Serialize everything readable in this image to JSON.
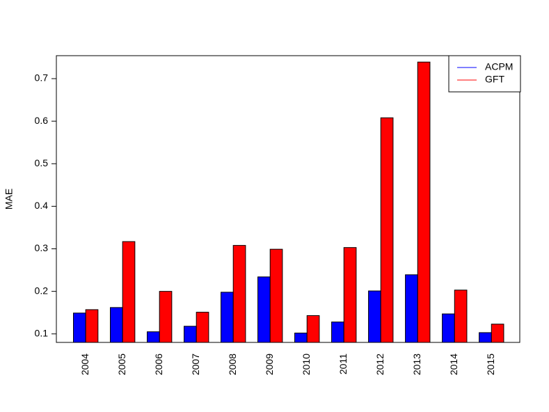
{
  "chart_data": {
    "type": "bar",
    "y_label": "MAE",
    "categories": [
      "2004",
      "2005",
      "2006",
      "2007",
      "2008",
      "2009",
      "2010",
      "2011",
      "2012",
      "2013",
      "2014",
      "2015"
    ],
    "series": [
      {
        "name": "ACPM",
        "color": "#0000ff",
        "values": [
          0.149,
          0.162,
          0.105,
          0.118,
          0.198,
          0.234,
          0.102,
          0.128,
          0.201,
          0.239,
          0.147,
          0.103
        ]
      },
      {
        "name": "GFT",
        "color": "#ff0000",
        "values": [
          0.157,
          0.317,
          0.2,
          0.151,
          0.308,
          0.299,
          0.143,
          0.303,
          0.608,
          0.739,
          0.203,
          0.123
        ]
      }
    ],
    "ylim": [
      0.08,
      0.754
    ],
    "yticks": [
      0.1,
      0.2,
      0.3,
      0.4,
      0.5,
      0.6,
      0.7
    ],
    "legend": "top-right"
  }
}
